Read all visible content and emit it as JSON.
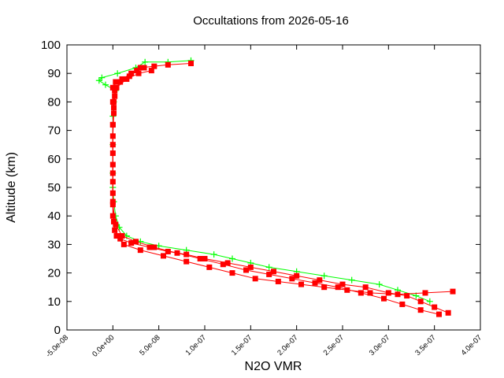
{
  "chart_data": {
    "type": "scatter",
    "title": "Occultations from 2026-05-16",
    "xlabel": "N2O VMR",
    "ylabel": "Altitude (km)",
    "xlim": [
      -5e-08,
      4e-07
    ],
    "ylim": [
      0,
      100
    ],
    "x_ticks": [
      -5e-08,
      0,
      5e-08,
      1e-07,
      1.5e-07,
      2e-07,
      2.5e-07,
      3e-07,
      3.5e-07,
      4e-07
    ],
    "x_tick_labels": [
      "-5.0e-08",
      "0.0e+00",
      "5.0e-08",
      "1.0e-07",
      "1.5e-07",
      "2.0e-07",
      "2.5e-07",
      "3.0e-07",
      "3.5e-07",
      "4.0e-07"
    ],
    "y_ticks": [
      0,
      10,
      20,
      30,
      40,
      50,
      60,
      70,
      80,
      90,
      100
    ],
    "y_tick_labels": [
      "0",
      "10",
      "20",
      "30",
      "40",
      "50",
      "60",
      "70",
      "80",
      "90",
      "100"
    ],
    "grid": false,
    "legend": "none",
    "series": [
      {
        "color": "#00ff00",
        "marker": "plus",
        "x": [
          3.45e-07,
          3.3e-07,
          3.1e-07,
          2.9e-07,
          2.6e-07,
          2.3e-07,
          2e-07,
          1.7e-07,
          1.5e-07,
          1.3e-07,
          1.1e-07,
          8e-08,
          5e-08,
          3e-08,
          1.5e-08,
          7e-09,
          3e-09,
          1e-09,
          0,
          0,
          0,
          0,
          1e-09,
          3e-09,
          -8e-09,
          -1.5e-08,
          -1.2e-08,
          5e-09,
          2.5e-08,
          3.5e-08,
          6e-08,
          8.5e-08
        ],
        "y": [
          10,
          12,
          14,
          16,
          17.5,
          19,
          20.5,
          22,
          23.5,
          25,
          26.5,
          28,
          29.5,
          31,
          33,
          36,
          40,
          45,
          50,
          55,
          65,
          75,
          80,
          84,
          86,
          87.5,
          88.5,
          90,
          92,
          94,
          94,
          94.5
        ]
      },
      {
        "color": "#ff0000",
        "marker": "square",
        "x": [
          3.65e-07,
          3.5e-07,
          3.35e-07,
          3.2e-07,
          3e-07,
          2.75e-07,
          2.5e-07,
          2.25e-07,
          2e-07,
          1.75e-07,
          1.5e-07,
          1.25e-07,
          1e-07,
          8e-08,
          6e-08,
          4e-08,
          2e-08,
          8e-09,
          2e-09,
          0,
          0,
          0,
          0,
          0,
          1e-09,
          2e-09,
          0,
          3e-09,
          1e-08,
          2e-08,
          3e-08,
          4.5e-08,
          6e-08,
          8.5e-08
        ],
        "y": [
          6,
          8,
          10,
          12,
          13,
          15,
          16,
          17.5,
          19,
          20.5,
          22,
          23.5,
          25,
          26.5,
          27.5,
          29,
          30.5,
          32,
          35,
          40,
          45,
          55,
          65,
          72,
          78,
          82,
          85,
          87,
          88,
          90,
          92,
          92.5,
          93,
          93.5
        ]
      },
      {
        "color": "#ff0000",
        "marker": "square",
        "x": [
          3.7e-07,
          3.4e-07,
          3.1e-07,
          2.8e-07,
          2.55e-07,
          2.3e-07,
          2.05e-07,
          1.8e-07,
          1.55e-07,
          1.3e-07,
          1.05e-07,
          8e-08,
          5.5e-08,
          3e-08,
          1.2e-08,
          4e-09,
          1e-09,
          0,
          0,
          0,
          1e-09,
          0,
          2e-09,
          8e-09,
          1.8e-08,
          2.6e-08,
          3.4e-08
        ],
        "y": [
          13.5,
          13,
          12.5,
          13,
          14,
          15,
          16,
          17,
          18,
          20,
          22,
          24,
          26,
          28,
          30,
          33,
          38,
          48,
          58,
          68,
          76,
          80,
          84,
          87,
          89,
          91,
          92
        ]
      },
      {
        "color": "#ff0000",
        "marker": "square",
        "x": [
          3.55e-07,
          3.35e-07,
          3.15e-07,
          2.95e-07,
          2.7e-07,
          2.45e-07,
          2.2e-07,
          1.95e-07,
          1.7e-07,
          1.45e-07,
          1.2e-07,
          9.5e-08,
          7e-08,
          4.5e-08,
          2.5e-08,
          1e-08,
          3e-09,
          0,
          0,
          0,
          0,
          1e-09,
          4e-09,
          1.5e-08,
          2.8e-08,
          4.2e-08
        ],
        "y": [
          5.5,
          7,
          9,
          11,
          13,
          15,
          16.5,
          18,
          19.5,
          21,
          23,
          25,
          27,
          29,
          31,
          33,
          37,
          44,
          52,
          62,
          72,
          80,
          85,
          88,
          90,
          91
        ]
      }
    ]
  }
}
